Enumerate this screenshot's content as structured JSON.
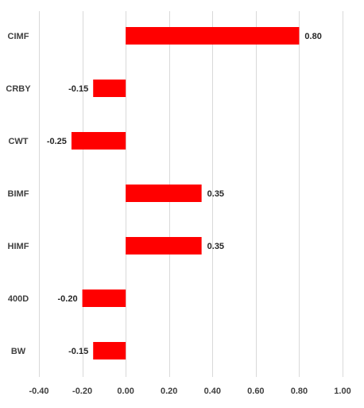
{
  "chart_data": {
    "type": "bar",
    "orientation": "horizontal",
    "title": "",
    "xlabel": "",
    "ylabel": "",
    "categories": [
      "CIMF",
      "CRBY",
      "CWT",
      "BIMF",
      "HIMF",
      "400D",
      "BW"
    ],
    "values": [
      0.8,
      -0.15,
      -0.25,
      0.35,
      0.35,
      -0.2,
      -0.15
    ],
    "data_labels": [
      "0.80",
      "-0.15",
      "-0.25",
      "0.35",
      "0.35",
      "-0.20",
      "-0.15"
    ],
    "xlim": [
      -0.4,
      1.0
    ],
    "x_ticks": [
      -0.4,
      -0.2,
      0.0,
      0.2,
      0.4,
      0.6,
      0.8,
      1.0
    ],
    "x_tick_labels": [
      "-0.40",
      "-0.20",
      "0.00",
      "0.20",
      "0.40",
      "0.60",
      "0.80",
      "1.00"
    ],
    "grid": true,
    "legend": "none",
    "bar_color": "#ff0000",
    "grid_color": "#d9d9d9"
  }
}
